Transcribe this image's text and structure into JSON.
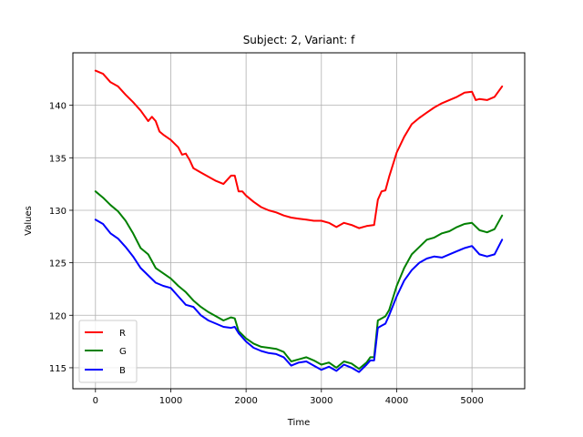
{
  "chart_data": {
    "type": "line",
    "title": "Subject: 2, Variant: f",
    "xlabel": "Time",
    "ylabel": "Values",
    "xlim": [
      -300,
      5700
    ],
    "ylim": [
      113,
      145
    ],
    "xticks": [
      0,
      1000,
      2000,
      3000,
      4000,
      5000
    ],
    "yticks": [
      115,
      120,
      125,
      130,
      135,
      140
    ],
    "grid": true,
    "legend_position": "lower-left",
    "series": [
      {
        "name": "R",
        "color": "#ff0000",
        "x": [
          0,
          100,
          200,
          300,
          400,
          500,
          600,
          700,
          750,
          800,
          850,
          900,
          1000,
          1100,
          1150,
          1200,
          1250,
          1300,
          1400,
          1500,
          1600,
          1700,
          1800,
          1850,
          1900,
          1950,
          2000,
          2100,
          2200,
          2300,
          2400,
          2500,
          2600,
          2700,
          2800,
          2900,
          3000,
          3100,
          3200,
          3300,
          3400,
          3500,
          3600,
          3700,
          3750,
          3800,
          3850,
          3900,
          4000,
          4100,
          4200,
          4300,
          4400,
          4500,
          4600,
          4700,
          4800,
          4900,
          5000,
          5050,
          5100,
          5200,
          5300,
          5400
        ],
        "y": [
          143.3,
          143.0,
          142.2,
          141.8,
          141.0,
          140.3,
          139.5,
          138.5,
          138.9,
          138.5,
          137.5,
          137.2,
          136.7,
          136.0,
          135.3,
          135.4,
          134.8,
          134.0,
          133.6,
          133.2,
          132.8,
          132.5,
          133.3,
          133.3,
          131.8,
          131.8,
          131.4,
          130.8,
          130.3,
          130.0,
          129.8,
          129.5,
          129.3,
          129.2,
          129.1,
          129.0,
          129.0,
          128.8,
          128.4,
          128.8,
          128.6,
          128.3,
          128.5,
          128.6,
          131.0,
          131.8,
          131.9,
          133.2,
          135.5,
          137.0,
          138.2,
          138.8,
          139.3,
          139.8,
          140.2,
          140.5,
          140.8,
          141.2,
          141.3,
          140.5,
          140.6,
          140.5,
          140.8,
          141.8
        ]
      },
      {
        "name": "G",
        "color": "#008000",
        "x": [
          0,
          100,
          200,
          300,
          400,
          500,
          600,
          700,
          800,
          900,
          1000,
          1100,
          1200,
          1300,
          1400,
          1500,
          1600,
          1700,
          1800,
          1850,
          1900,
          2000,
          2100,
          2200,
          2300,
          2400,
          2500,
          2600,
          2700,
          2800,
          2900,
          3000,
          3100,
          3200,
          3300,
          3400,
          3500,
          3600,
          3650,
          3700,
          3750,
          3800,
          3850,
          3900,
          4000,
          4100,
          4200,
          4300,
          4400,
          4500,
          4600,
          4700,
          4800,
          4900,
          5000,
          5100,
          5200,
          5300,
          5400
        ],
        "y": [
          131.8,
          131.2,
          130.5,
          129.9,
          129.0,
          127.8,
          126.4,
          125.8,
          124.5,
          124.0,
          123.5,
          122.8,
          122.2,
          121.4,
          120.8,
          120.3,
          119.9,
          119.5,
          119.8,
          119.7,
          118.5,
          117.8,
          117.3,
          117.0,
          116.9,
          116.8,
          116.5,
          115.6,
          115.8,
          116.0,
          115.7,
          115.3,
          115.5,
          115.0,
          115.6,
          115.4,
          114.9,
          115.5,
          116.0,
          116.0,
          119.5,
          119.7,
          119.9,
          120.5,
          122.8,
          124.5,
          125.8,
          126.5,
          127.2,
          127.4,
          127.8,
          128.0,
          128.4,
          128.7,
          128.8,
          128.1,
          127.9,
          128.2,
          129.5
        ]
      },
      {
        "name": "B",
        "color": "#0000ff",
        "x": [
          0,
          100,
          200,
          300,
          400,
          500,
          600,
          700,
          800,
          900,
          1000,
          1100,
          1200,
          1300,
          1400,
          1500,
          1600,
          1700,
          1800,
          1850,
          1900,
          2000,
          2100,
          2200,
          2300,
          2400,
          2500,
          2600,
          2700,
          2800,
          2900,
          3000,
          3100,
          3200,
          3300,
          3400,
          3500,
          3600,
          3650,
          3700,
          3750,
          3800,
          3850,
          3900,
          4000,
          4100,
          4200,
          4300,
          4400,
          4500,
          4600,
          4700,
          4800,
          4900,
          5000,
          5100,
          5200,
          5300,
          5400
        ],
        "y": [
          129.1,
          128.7,
          127.8,
          127.3,
          126.5,
          125.6,
          124.5,
          123.8,
          123.1,
          122.8,
          122.6,
          121.8,
          121.0,
          120.8,
          120.0,
          119.5,
          119.2,
          118.9,
          118.8,
          118.9,
          118.3,
          117.5,
          116.9,
          116.6,
          116.4,
          116.3,
          116.0,
          115.2,
          115.5,
          115.6,
          115.2,
          114.8,
          115.1,
          114.7,
          115.3,
          115.0,
          114.6,
          115.3,
          115.7,
          115.7,
          118.8,
          119.0,
          119.2,
          120.0,
          121.8,
          123.3,
          124.3,
          125.0,
          125.4,
          125.6,
          125.5,
          125.8,
          126.1,
          126.4,
          126.6,
          125.8,
          125.6,
          125.8,
          127.2
        ]
      }
    ]
  }
}
